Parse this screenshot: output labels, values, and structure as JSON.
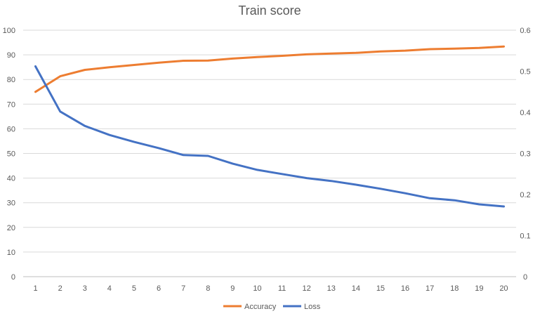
{
  "chart_data": {
    "type": "line",
    "title": "Train score",
    "x": [
      1,
      2,
      3,
      4,
      5,
      6,
      7,
      8,
      9,
      10,
      11,
      12,
      13,
      14,
      15,
      16,
      17,
      18,
      19,
      20
    ],
    "y_left": {
      "min": 0,
      "max": 100,
      "ticks": [
        0,
        10,
        20,
        30,
        40,
        50,
        60,
        70,
        80,
        90,
        100
      ]
    },
    "y_right": {
      "min": 0,
      "max": 0.6,
      "ticks": [
        "0",
        "0.1",
        "0.2",
        "0.3",
        "0.4",
        "0.5",
        "0.6"
      ]
    },
    "grid": true,
    "legend_position": "bottom",
    "series": [
      {
        "name": "Accuracy",
        "axis": "left",
        "color": "#ED7D31",
        "values": [
          75.0,
          81.3,
          83.9,
          85.0,
          85.9,
          86.8,
          87.6,
          87.7,
          88.5,
          89.1,
          89.6,
          90.2,
          90.5,
          90.8,
          91.4,
          91.7,
          92.3,
          92.5,
          92.8,
          93.4
        ]
      },
      {
        "name": "Loss",
        "axis": "right",
        "color": "#4472C4",
        "values": [
          0.512,
          0.402,
          0.367,
          0.345,
          0.328,
          0.313,
          0.296,
          0.294,
          0.275,
          0.26,
          0.25,
          0.24,
          0.233,
          0.224,
          0.214,
          0.203,
          0.191,
          0.186,
          0.176,
          0.171
        ]
      }
    ]
  }
}
